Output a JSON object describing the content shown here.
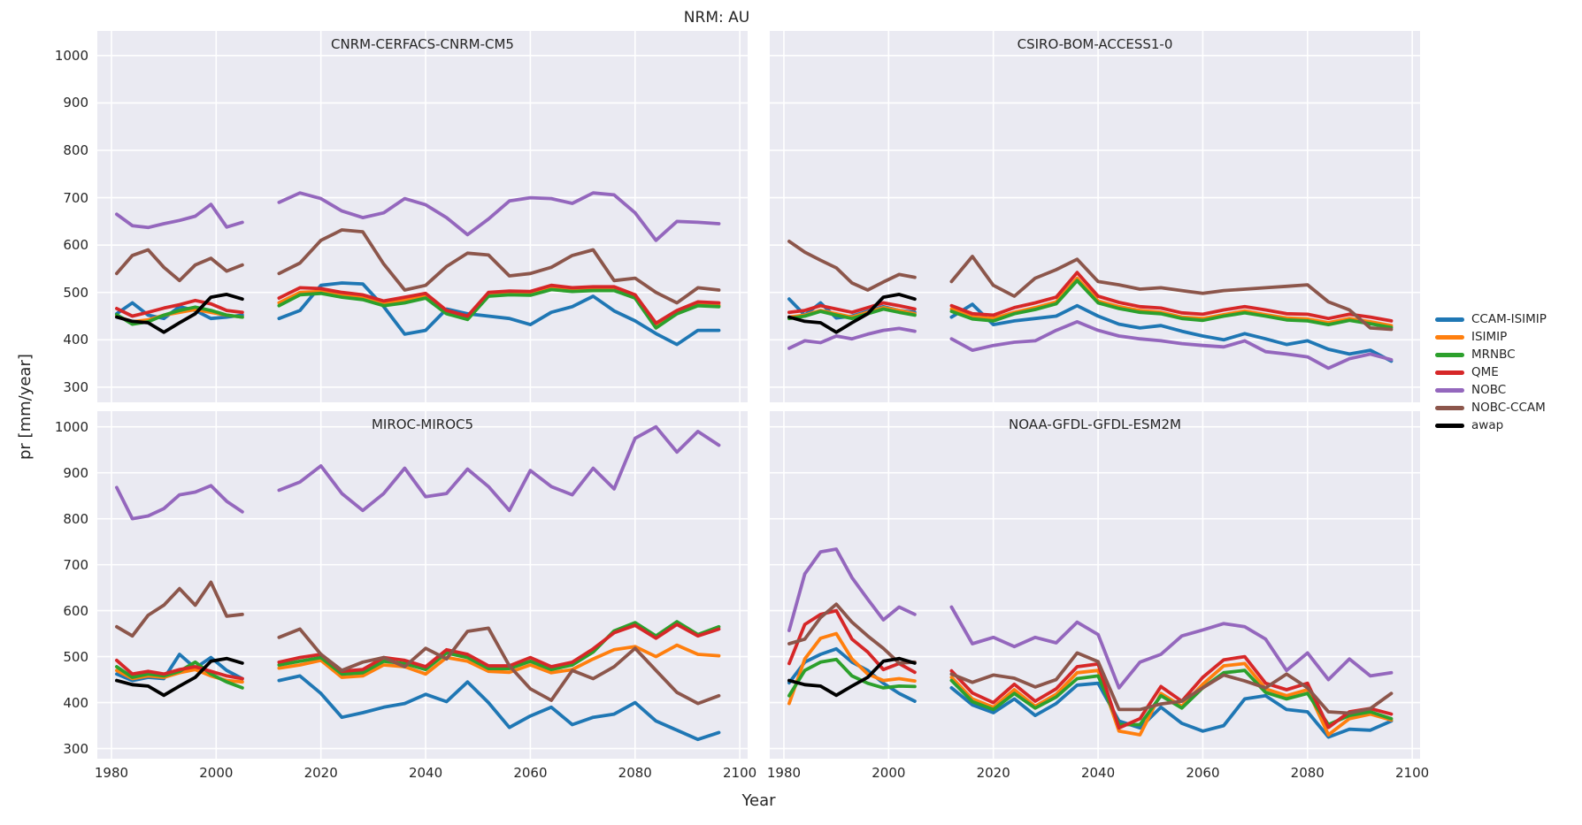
{
  "figure": {
    "title": "NRM: AU",
    "xlabel": "Year",
    "ylabel": "pr [mm/year]"
  },
  "chart_data": {
    "type": "line",
    "title": "NRM: AU",
    "xlabel": "Year",
    "ylabel": "pr [mm/year]",
    "grid": true,
    "legend_position": "right",
    "x_ticks": [
      1980,
      2000,
      2020,
      2040,
      2060,
      2080,
      2100
    ],
    "y_ticks": [
      300,
      400,
      500,
      600,
      700,
      800,
      900,
      1000
    ],
    "xlim": [
      1977.3,
      2101.5
    ],
    "ylim": [
      268,
      1052
    ],
    "years_hist": [
      1981,
      1984,
      1987,
      1990,
      1993,
      1996,
      1999,
      2002,
      2005
    ],
    "years_future": [
      2012,
      2016,
      2020,
      2024,
      2028,
      2032,
      2036,
      2040,
      2044,
      2048,
      2052,
      2056,
      2060,
      2064,
      2068,
      2072,
      2076,
      2080,
      2084,
      2088,
      2092,
      2096
    ],
    "series_meta": [
      {
        "key": "CCAM-ISIMIP",
        "color": "#1f77b4"
      },
      {
        "key": "ISIMIP",
        "color": "#ff7f0e"
      },
      {
        "key": "MRNBC",
        "color": "#2ca02c"
      },
      {
        "key": "QME",
        "color": "#d62728"
      },
      {
        "key": "NOBC",
        "color": "#9467bd"
      },
      {
        "key": "NOBC-CCAM",
        "color": "#8c564b"
      },
      {
        "key": "awap",
        "color": "#000000"
      }
    ],
    "panels": [
      {
        "title": "CNRM-CERFACS-CNRM-CM5",
        "series": {
          "CCAM-ISIMIP": {
            "hist": [
              455,
              478,
              452,
              445,
              470,
              462,
              445,
              448,
              452
            ],
            "future": [
              445,
              462,
              515,
              520,
              518,
              470,
              412,
              420,
              465,
              455,
              450,
              445,
              432,
              458,
              470,
              492,
              461,
              440,
              413,
              390,
              420,
              420
            ]
          },
          "ISIMIP": {
            "hist": [
              450,
              438,
              442,
              452,
              458,
              464,
              458,
              452,
              448
            ],
            "future": [
              478,
              500,
              502,
              494,
              489,
              477,
              483,
              492,
              458,
              446,
              495,
              498,
              497,
              509,
              505,
              507,
              507,
              490,
              430,
              458,
              475,
              473
            ]
          },
          "MRNBC": {
            "hist": [
              453,
              433,
              438,
              452,
              462,
              469,
              462,
              452,
              448
            ],
            "future": [
              472,
              495,
              498,
              490,
              485,
              472,
              478,
              488,
              455,
              443,
              492,
              495,
              494,
              506,
              502,
              504,
              504,
              488,
              425,
              455,
              472,
              470
            ]
          },
          "QME": {
            "hist": [
              466,
              450,
              458,
              467,
              474,
              483,
              476,
              462,
              458
            ],
            "future": [
              488,
              510,
              508,
              500,
              495,
              482,
              490,
              498,
              462,
              450,
              500,
              503,
              502,
              515,
              510,
              512,
              512,
              495,
              435,
              462,
              480,
              478
            ]
          },
          "NOBC": {
            "hist": [
              665,
              641,
              637,
              645,
              652,
              661,
              686,
              638,
              648
            ],
            "future": [
              690,
              710,
              698,
              672,
              658,
              668,
              698,
              685,
              658,
              622,
              655,
              693,
              700,
              698,
              688,
              710,
              706,
              668,
              610,
              650,
              648,
              645
            ]
          },
          "NOBC-CCAM": {
            "hist": [
              540,
              578,
              590,
              553,
              525,
              558,
              572,
              545,
              558
            ],
            "future": [
              540,
              562,
              610,
              632,
              628,
              560,
              505,
              515,
              555,
              583,
              579,
              535,
              540,
              553,
              578,
              590,
              525,
              530,
              500,
              478,
              510,
              505
            ]
          },
          "awap": {
            "hist": [
              448,
              439,
              436,
              416,
              436,
              455,
              490,
              496,
              486
            ],
            "future": []
          }
        }
      },
      {
        "title": "CSIRO-BOM-ACCESS1-0",
        "series": {
          "CCAM-ISIMIP": {
            "hist": [
              486,
              452,
              478,
              446,
              450,
              460,
              470,
              462,
              458
            ],
            "future": [
              448,
              475,
              432,
              440,
              445,
              450,
              472,
              450,
              433,
              425,
              430,
              418,
              408,
              400,
              413,
              402,
              390,
              398,
              380,
              370,
              378,
              355
            ]
          },
          "ISIMIP": {
            "hist": [
              448,
              452,
              462,
              455,
              448,
              458,
              468,
              462,
              455
            ],
            "future": [
              465,
              448,
              445,
              458,
              468,
              480,
              530,
              482,
              470,
              462,
              458,
              448,
              445,
              453,
              461,
              453,
              446,
              444,
              436,
              445,
              438,
              430
            ]
          },
          "MRNBC": {
            "hist": [
              445,
              450,
              460,
              452,
              445,
              455,
              465,
              458,
              452
            ],
            "future": [
              460,
              444,
              440,
              455,
              464,
              476,
              525,
              478,
              466,
              458,
              455,
              445,
              441,
              450,
              457,
              450,
              442,
              440,
              432,
              441,
              434,
              426
            ]
          },
          "QME": {
            "hist": [
              458,
              462,
              472,
              465,
              458,
              468,
              478,
              472,
              465
            ],
            "future": [
              472,
              455,
              452,
              468,
              478,
              490,
              542,
              492,
              479,
              470,
              467,
              457,
              454,
              463,
              470,
              463,
              455,
              454,
              445,
              454,
              448,
              440
            ]
          },
          "NOBC": {
            "hist": [
              382,
              398,
              394,
              408,
              402,
              412,
              420,
              424,
              418
            ],
            "future": [
              402,
              378,
              388,
              395,
              398,
              420,
              438,
              420,
              408,
              402,
              398,
              392,
              388,
              385,
              398,
              375,
              370,
              364,
              340,
              360,
              370,
              358
            ]
          },
          "NOBC-CCAM": {
            "hist": [
              608,
              585,
              568,
              552,
              520,
              505,
              522,
              538,
              532
            ],
            "future": [
              523,
              576,
              515,
              492,
              530,
              548,
              570,
              523,
              516,
              507,
              510,
              504,
              498,
              504,
              507,
              510,
              513,
              516,
              480,
              463,
              425,
              422
            ]
          },
          "awap": {
            "hist": [
              448,
              439,
              436,
              416,
              436,
              455,
              490,
              496,
              486
            ],
            "future": []
          }
        }
      },
      {
        "title": "MIROC-MIROC5",
        "series": {
          "CCAM-ISIMIP": {
            "hist": [
              462,
              448,
              455,
              452,
              505,
              475,
              498,
              470,
              452
            ],
            "future": [
              448,
              458,
              420,
              368,
              378,
              390,
              398,
              418,
              402,
              445,
              400,
              346,
              371,
              390,
              352,
              368,
              375,
              400,
              360,
              340,
              320,
              335
            ]
          },
          "ISIMIP": {
            "hist": [
              470,
              452,
              458,
              455,
              465,
              472,
              458,
              448,
              445
            ],
            "future": [
              475,
              482,
              492,
              455,
              458,
              482,
              478,
              462,
              498,
              490,
              468,
              466,
              482,
              465,
              472,
              495,
              515,
              522,
              500,
              525,
              505,
              502
            ]
          },
          "MRNBC": {
            "hist": [
              478,
              455,
              462,
              458,
              468,
              488,
              462,
              445,
              432
            ],
            "future": [
              482,
              490,
              498,
              462,
              465,
              490,
              485,
              472,
              508,
              498,
              474,
              474,
              490,
              472,
              482,
              510,
              556,
              574,
              545,
              576,
              548,
              565
            ]
          },
          "QME": {
            "hist": [
              492,
              462,
              468,
              462,
              472,
              478,
              468,
              458,
              452
            ],
            "future": [
              488,
              498,
              505,
              468,
              472,
              498,
              492,
              478,
              515,
              505,
              480,
              480,
              498,
              478,
              488,
              517,
              552,
              568,
              540,
              570,
              545,
              560
            ]
          },
          "NOBC": {
            "hist": [
              868,
              800,
              806,
              822,
              852,
              858,
              872,
              838,
              815
            ],
            "future": [
              862,
              880,
              915,
              855,
              818,
              855,
              910,
              848,
              855,
              908,
              870,
              818,
              905,
              870,
              852,
              910,
              865,
              975,
              1000,
              945,
              990,
              960
            ]
          },
          "NOBC-CCAM": {
            "hist": [
              565,
              545,
              590,
              612,
              648,
              612,
              662,
              588,
              592
            ],
            "future": [
              542,
              560,
              505,
              470,
              488,
              498,
              478,
              518,
              495,
              555,
              562,
              480,
              430,
              405,
              470,
              452,
              478,
              518,
              470,
              422,
              398,
              415
            ]
          },
          "awap": {
            "hist": [
              448,
              439,
              436,
              416,
              436,
              455,
              490,
              496,
              486
            ],
            "future": []
          }
        }
      },
      {
        "title": "NOAA-GFDL-GFDL-ESM2M",
        "series": {
          "CCAM-ISIMIP": {
            "hist": [
              443,
              488,
              505,
              517,
              488,
              470,
              442,
              420,
              403
            ],
            "future": [
              432,
              395,
              378,
              408,
              372,
              398,
              438,
              442,
              360,
              345,
              390,
              355,
              338,
              350,
              408,
              415,
              385,
              380,
              325,
              342,
              340,
              360
            ]
          },
          "ISIMIP": {
            "hist": [
              398,
              495,
              540,
              550,
              495,
              462,
              448,
              452,
              447
            ],
            "future": [
              455,
              408,
              390,
              428,
              392,
              418,
              465,
              470,
              338,
              330,
              420,
              392,
              440,
              480,
              485,
              430,
              415,
              428,
              330,
              365,
              375,
              362
            ]
          },
          "MRNBC": {
            "hist": [
              415,
              470,
              488,
              494,
              458,
              442,
              432,
              436,
              435
            ],
            "future": [
              448,
              402,
              385,
              420,
              388,
              412,
              452,
              458,
              352,
              352,
              415,
              388,
              432,
              465,
              470,
              422,
              408,
              420,
              352,
              372,
              380,
              365
            ]
          },
          "QME": {
            "hist": [
              485,
              570,
              592,
              600,
              538,
              510,
              472,
              485,
              466
            ],
            "future": [
              469,
              421,
              400,
              440,
              403,
              430,
              478,
              484,
              345,
              365,
              435,
              403,
              455,
              493,
              500,
              442,
              428,
              442,
              346,
              380,
              387,
              375
            ]
          },
          "NOBC": {
            "hist": [
              557,
              680,
              728,
              734,
              672,
              625,
              580,
              608,
              592
            ],
            "future": [
              608,
              528,
              542,
              522,
              542,
              530,
              575,
              548,
              432,
              488,
              505,
              545,
              558,
              572,
              565,
              538,
              470,
              508,
              450,
              495,
              458,
              465
            ]
          },
          "NOBC-CCAM": {
            "hist": [
              528,
              538,
              585,
              614,
              575,
              545,
              518,
              486,
              488
            ],
            "future": [
              462,
              444,
              460,
              453,
              434,
              450,
              508,
              489,
              385,
              385,
              397,
              403,
              432,
              460,
              447,
              432,
              462,
              432,
              380,
              377,
              387,
              420
            ]
          },
          "awap": {
            "hist": [
              448,
              439,
              436,
              416,
              436,
              455,
              490,
              496,
              486
            ],
            "future": []
          }
        }
      }
    ]
  }
}
